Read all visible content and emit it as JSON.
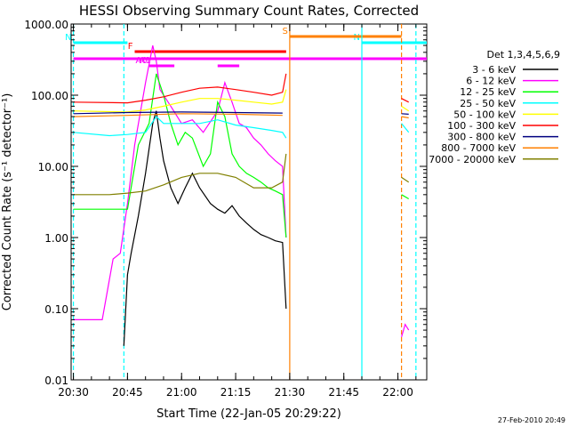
{
  "chart_data": {
    "type": "line",
    "title": "HESSI Observing Summary Count Rates, Corrected",
    "xlabel": "Start Time (22-Jan-05 20:29:22)",
    "ylabel": "Corrected Count Rate (s⁻¹ detector⁻¹)",
    "y_scale": "log",
    "ylim": [
      0.01,
      1000
    ],
    "xlim": [
      "20:29:22",
      "22:08"
    ],
    "x_ticks": [
      "20:30",
      "20:45",
      "21:00",
      "21:15",
      "21:30",
      "21:45",
      "22:00"
    ],
    "y_ticks": [
      "1000.00",
      "100.00",
      "10.00",
      "1.00",
      "0.10",
      "0.01"
    ],
    "grid": false,
    "legend_position": "right",
    "legend_title": "Det 1,3,4,5,6,9",
    "data_gap": [
      "21:29",
      "22:01"
    ],
    "series": [
      {
        "name": "3 - 6 keV",
        "color": "#000000",
        "x": [
          "20:44",
          "20:45",
          "20:46",
          "20:48",
          "20:50",
          "20:52",
          "20:53",
          "20:54",
          "20:55",
          "20:57",
          "20:59",
          "21:01",
          "21:03",
          "21:05",
          "21:08",
          "21:10",
          "21:12",
          "21:14",
          "21:16",
          "21:18",
          "21:20",
          "21:22",
          "21:24",
          "21:26",
          "21:28",
          "21:29"
        ],
        "y": [
          0.03,
          0.3,
          0.6,
          2,
          8,
          40,
          60,
          25,
          12,
          5,
          3,
          5,
          8,
          5,
          3,
          2.5,
          2.2,
          2.8,
          2,
          1.6,
          1.3,
          1.1,
          1,
          0.9,
          0.85,
          0.1
        ]
      },
      {
        "name": "6 - 12 keV",
        "color": "#ff00ff",
        "x": [
          "20:30",
          "20:38",
          "20:41",
          "20:43",
          "20:45",
          "20:47",
          "20:50",
          "20:52",
          "20:53",
          "20:54",
          "20:57",
          "21:00",
          "21:03",
          "21:06",
          "21:10",
          "21:12",
          "21:14",
          "21:16",
          "21:18",
          "21:20",
          "21:22",
          "21:24",
          "21:26",
          "21:28",
          "21:29",
          "22:01",
          "22:02",
          "22:03"
        ],
        "y": [
          0.07,
          0.07,
          0.5,
          0.6,
          3,
          20,
          150,
          500,
          300,
          120,
          70,
          40,
          45,
          30,
          60,
          150,
          80,
          40,
          35,
          25,
          20,
          15,
          12,
          10,
          1,
          0.04,
          0.06,
          0.05
        ]
      },
      {
        "name": "12 - 25 keV",
        "color": "#00ff00",
        "x": [
          "20:30",
          "20:44",
          "20:45",
          "20:48",
          "20:51",
          "20:53",
          "20:55",
          "20:57",
          "20:59",
          "21:01",
          "21:03",
          "21:06",
          "21:08",
          "21:10",
          "21:12",
          "21:14",
          "21:16",
          "21:18",
          "21:20",
          "21:22",
          "21:24",
          "21:26",
          "21:28",
          "21:29",
          "22:01",
          "22:03"
        ],
        "y": [
          2.5,
          2.5,
          2.5,
          20,
          40,
          200,
          100,
          40,
          20,
          30,
          25,
          10,
          15,
          80,
          50,
          15,
          10,
          8,
          7,
          6,
          5,
          4.5,
          4,
          1,
          4,
          3.5
        ]
      },
      {
        "name": "25 - 50 keV",
        "color": "#00ffff",
        "x": [
          "20:30",
          "20:40",
          "20:45",
          "20:50",
          "20:53",
          "20:55",
          "21:00",
          "21:05",
          "21:10",
          "21:15",
          "21:20",
          "21:25",
          "21:28",
          "21:29",
          "22:01",
          "22:03"
        ],
        "y": [
          30,
          27,
          28,
          30,
          50,
          40,
          40,
          40,
          45,
          38,
          35,
          32,
          30,
          25,
          40,
          30
        ]
      },
      {
        "name": "50 - 100 keV",
        "color": "#ffff00",
        "x": [
          "20:30",
          "20:45",
          "20:50",
          "20:55",
          "21:00",
          "21:05",
          "21:10",
          "21:15",
          "21:20",
          "21:25",
          "21:28",
          "21:29",
          "22:01",
          "22:03"
        ],
        "y": [
          60,
          58,
          62,
          70,
          80,
          90,
          90,
          85,
          80,
          75,
          80,
          120,
          70,
          60
        ]
      },
      {
        "name": "100 - 300 keV",
        "color": "#ff0000",
        "x": [
          "20:30",
          "20:45",
          "20:50",
          "20:55",
          "21:00",
          "21:05",
          "21:10",
          "21:15",
          "21:20",
          "21:25",
          "21:28",
          "21:29",
          "22:01",
          "22:03"
        ],
        "y": [
          80,
          78,
          85,
          95,
          110,
          125,
          130,
          120,
          110,
          100,
          110,
          200,
          90,
          80
        ]
      },
      {
        "name": "300 - 800 keV",
        "color": "#000080",
        "x": [
          "20:30",
          "20:45",
          "21:00",
          "21:15",
          "21:28",
          "22:01",
          "22:03"
        ],
        "y": [
          55,
          57,
          58,
          57,
          56,
          55,
          54
        ]
      },
      {
        "name": "800 - 7000 keV",
        "color": "#ff8000",
        "x": [
          "20:30",
          "20:45",
          "21:00",
          "21:15",
          "21:28",
          "22:01",
          "22:03"
        ],
        "y": [
          50,
          52,
          55,
          54,
          52,
          50,
          48
        ]
      },
      {
        "name": "7000 - 20000 keV",
        "color": "#808000",
        "x": [
          "20:30",
          "20:40",
          "20:45",
          "20:50",
          "20:55",
          "21:00",
          "21:05",
          "21:10",
          "21:15",
          "21:20",
          "21:25",
          "21:28",
          "21:29",
          "22:01",
          "22:03"
        ],
        "y": [
          4,
          4,
          4.2,
          4.5,
          5.5,
          7,
          8,
          8,
          7,
          5,
          5,
          6,
          15,
          7,
          6
        ]
      }
    ],
    "flags": [
      {
        "label": "N",
        "color": "#00ffff",
        "start": "20:30",
        "end": "20:45"
      },
      {
        "label": "N",
        "color": "#00ffff",
        "start": "21:50",
        "end": "22:08"
      },
      {
        "label": "F",
        "color": "#ff0000",
        "start": "20:47",
        "end": "21:29"
      },
      {
        "label": "S",
        "color": "#ff8000",
        "start": "21:30",
        "end": "22:01"
      },
      {
        "label": "",
        "color": "#ff00ff",
        "start": "20:30",
        "end": "22:08"
      },
      {
        "label": "A0",
        "color": "#ff00ff",
        "start": "20:51",
        "end": "20:54"
      },
      {
        "label": "",
        "color": "#ff00ff",
        "start": "20:55",
        "end": "21:14"
      },
      {
        "label": "A1",
        "color": "#ff00ff",
        "start": "20:52",
        "end": "20:58"
      },
      {
        "label": "",
        "color": "#ff00ff",
        "start": "21:10",
        "end": "21:16"
      },
      {
        "label": "",
        "color": "#ff00ff",
        "start": "21:19",
        "end": "22:08"
      }
    ],
    "vertical_markers": [
      {
        "time": "20:30",
        "color": "#00ffff",
        "style": "dashed"
      },
      {
        "time": "20:44",
        "color": "#00ffff",
        "style": "dashed"
      },
      {
        "time": "21:30",
        "color": "#ff8000",
        "style": "solid"
      },
      {
        "time": "21:50",
        "color": "#00ffff",
        "style": "solid"
      },
      {
        "time": "22:01",
        "color": "#ff8000",
        "style": "dashed"
      },
      {
        "time": "22:05",
        "color": "#00ffff",
        "style": "dashed"
      }
    ]
  },
  "footer": {
    "timestamp": "27-Feb-2010 20:49"
  }
}
